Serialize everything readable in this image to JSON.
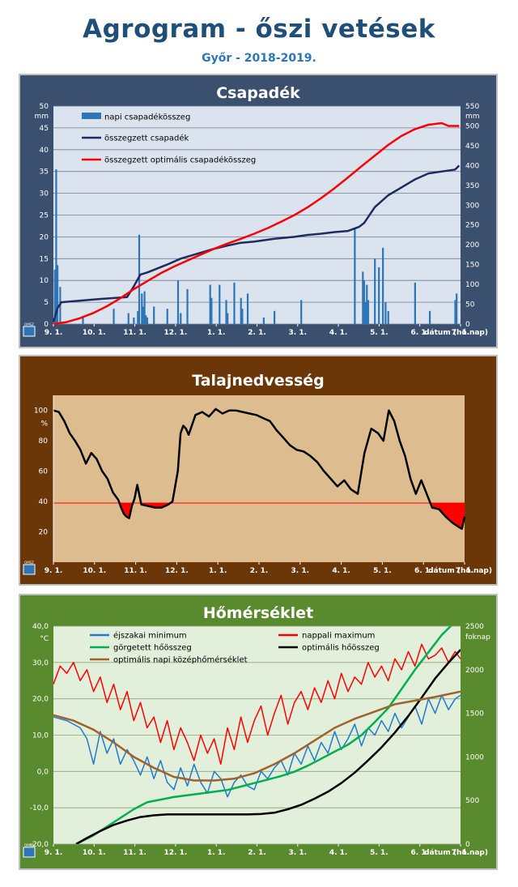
{
  "header": {
    "title": "Agrogram - őszi vetések",
    "subtitle": "Győr - 2018-2019."
  },
  "logo_text": "OMSZ",
  "colors": {
    "bar": "#2e75b6",
    "navy": "#1f2a5e",
    "red": "#ff0000",
    "green": "#00b050",
    "brown": "#a0622d",
    "blue": "#1f7bd0",
    "black": "#000000"
  },
  "x_axis": {
    "ticks": [
      "9. 1.",
      "10. 1.",
      "11. 1.",
      "12. 1.",
      "1. 1.",
      "2. 1.",
      "3. 1.",
      "4. 1.",
      "5. 1.",
      "6. 1.",
      "7. 1."
    ],
    "label": "dátum (hó.nap)"
  },
  "chart_data": [
    {
      "type": "bar",
      "title": "Csapadék",
      "ylabel": "mm",
      "y2label": "mm",
      "ylim": [
        0,
        50
      ],
      "y2lim": [
        0,
        550
      ],
      "yticks": [
        0,
        5,
        10,
        15,
        20,
        25,
        30,
        35,
        40,
        45,
        50
      ],
      "y2ticks": [
        0,
        50,
        100,
        150,
        200,
        250,
        300,
        350,
        400,
        450,
        500,
        550
      ],
      "grid": true,
      "legend": [
        "napi csapadékösszeg",
        "összegzett csapadék",
        "összegzett optimális csapadékösszeg"
      ],
      "series": [
        {
          "name": "napi csapadékösszeg",
          "axis": "left",
          "kind": "bar",
          "x": [
            1,
            2,
            3,
            5,
            22,
            45,
            56,
            60,
            63,
            64,
            66,
            67,
            68,
            69,
            70,
            75,
            85,
            93,
            95,
            100,
            117,
            118,
            124,
            129,
            130,
            135,
            140,
            141,
            145,
            157,
            165,
            185,
            225,
            231,
            232,
            233,
            234,
            235,
            240,
            243,
            246,
            248,
            250,
            270,
            281,
            300,
            301
          ],
          "values": [
            12.5,
            35.5,
            13.5,
            8.5,
            1.5,
            3.5,
            2.5,
            1.5,
            3,
            20.5,
            7,
            4,
            7.5,
            2,
            1.5,
            4,
            3.5,
            10,
            2.5,
            8,
            9,
            6,
            9,
            5.5,
            2.5,
            9.5,
            6,
            3.5,
            7,
            1.5,
            3,
            5.5,
            22,
            12,
            10,
            5,
            9,
            5.5,
            15,
            13,
            17.5,
            5,
            3,
            9.5,
            3,
            5.5,
            7
          ]
        },
        {
          "name": "összegzett csapadék",
          "axis": "right",
          "kind": "line",
          "x": [
            0,
            3,
            6,
            30,
            55,
            60,
            65,
            70,
            85,
            95,
            105,
            120,
            130,
            140,
            150,
            165,
            180,
            190,
            200,
            210,
            220,
            228,
            232,
            240,
            250,
            260,
            270,
            280,
            290,
            300,
            303
          ],
          "values": [
            5,
            40,
            55,
            62,
            68,
            95,
            125,
            130,
            150,
            165,
            175,
            190,
            198,
            205,
            208,
            215,
            220,
            225,
            228,
            232,
            235,
            245,
            255,
            295,
            325,
            345,
            365,
            380,
            385,
            390,
            400
          ]
        },
        {
          "name": "összegzett optimális csapadékösszeg",
          "axis": "right",
          "kind": "line",
          "x": [
            0,
            10,
            20,
            30,
            40,
            50,
            60,
            70,
            80,
            90,
            100,
            110,
            120,
            130,
            140,
            150,
            160,
            170,
            180,
            190,
            200,
            210,
            220,
            230,
            240,
            250,
            260,
            270,
            280,
            290,
            295,
            303
          ],
          "values": [
            0,
            5,
            15,
            28,
            45,
            65,
            88,
            108,
            128,
            145,
            160,
            175,
            190,
            203,
            215,
            228,
            242,
            258,
            275,
            295,
            318,
            343,
            370,
            398,
            425,
            452,
            475,
            492,
            503,
            507,
            500,
            500
          ]
        }
      ]
    },
    {
      "type": "area",
      "title": "Talajnedvesség",
      "ylabel": "%",
      "ylim": [
        0,
        110
      ],
      "yticks": [
        20,
        40,
        60,
        80,
        100
      ],
      "threshold": 39,
      "grid": false,
      "series": [
        {
          "name": "",
          "kind": "line",
          "x": [
            0,
            4,
            8,
            12,
            16,
            20,
            24,
            28,
            32,
            36,
            40,
            44,
            48,
            50,
            52,
            54,
            56,
            58,
            60,
            62,
            65,
            70,
            75,
            80,
            85,
            88,
            92,
            94,
            96,
            98,
            100,
            105,
            110,
            115,
            120,
            125,
            130,
            135,
            140,
            145,
            150,
            155,
            160,
            165,
            170,
            175,
            180,
            185,
            190,
            195,
            200,
            205,
            210,
            215,
            220,
            225,
            230,
            235,
            240,
            244,
            248,
            252,
            256,
            260,
            264,
            268,
            272,
            276,
            280,
            285,
            290,
            295,
            300,
            302,
            304
          ],
          "values": [
            100,
            99,
            93,
            85,
            80,
            74,
            65,
            72,
            68,
            60,
            55,
            46,
            41,
            36,
            32,
            30,
            29,
            37,
            42,
            51,
            38,
            37,
            36,
            36,
            38,
            40,
            60,
            85,
            90,
            88,
            84,
            97,
            99,
            96,
            101,
            98,
            100,
            100,
            99,
            98,
            97,
            95,
            93,
            87,
            82,
            77,
            74,
            73,
            70,
            66,
            60,
            55,
            50,
            54,
            48,
            45,
            72,
            88,
            85,
            80,
            100,
            93,
            80,
            70,
            55,
            45,
            54,
            45,
            36,
            35,
            30,
            26,
            23,
            22,
            30
          ]
        }
      ]
    },
    {
      "type": "line",
      "title": "Hőmérséklet",
      "ylabel": "°C",
      "y2label": "foknap",
      "ylim": [
        -20,
        40
      ],
      "y2lim": [
        0,
        2500
      ],
      "yticks": [
        "-20,0",
        "-10,0",
        "0,0",
        "10,0",
        "20,0",
        "30,0",
        "40,0"
      ],
      "y2ticks": [
        0,
        500,
        1000,
        1500,
        2000,
        2500
      ],
      "grid": true,
      "legend": [
        "éjszakai minimum",
        "nappali maximum",
        "görgetett hőösszeg",
        "optimális hőösszeg",
        "optimális napi középhőmérséklet"
      ],
      "series": [
        {
          "name": "éjszakai minimum",
          "axis": "left",
          "kind": "line",
          "x": [
            0,
            10,
            20,
            25,
            30,
            35,
            40,
            45,
            50,
            55,
            60,
            65,
            70,
            75,
            80,
            85,
            90,
            95,
            100,
            105,
            110,
            115,
            120,
            125,
            130,
            135,
            140,
            145,
            150,
            155,
            160,
            165,
            170,
            175,
            180,
            185,
            190,
            195,
            200,
            205,
            210,
            215,
            220,
            225,
            230,
            235,
            240,
            245,
            250,
            255,
            260,
            265,
            270,
            275,
            280,
            285,
            290,
            295,
            300,
            304
          ],
          "values": [
            15,
            14,
            12,
            9,
            2,
            11,
            5,
            9,
            2,
            6,
            3,
            -1,
            4,
            -2,
            3,
            -3,
            -5,
            1,
            -4,
            2,
            -3,
            -6,
            0,
            -2,
            -7,
            -3,
            -1,
            -4,
            -5,
            0,
            -2,
            1,
            3,
            -1,
            5,
            2,
            7,
            3,
            8,
            5,
            11,
            6,
            9,
            13,
            7,
            12,
            10,
            14,
            11,
            16,
            12,
            15,
            18,
            13,
            20,
            16,
            21,
            17,
            20,
            21
          ]
        },
        {
          "name": "nappali maximum",
          "axis": "left",
          "kind": "line",
          "x": [
            0,
            5,
            10,
            15,
            20,
            25,
            30,
            35,
            40,
            45,
            50,
            55,
            60,
            65,
            70,
            75,
            80,
            85,
            90,
            95,
            100,
            105,
            110,
            115,
            120,
            125,
            130,
            135,
            140,
            145,
            150,
            155,
            160,
            165,
            170,
            175,
            180,
            185,
            190,
            195,
            200,
            205,
            210,
            215,
            220,
            225,
            230,
            235,
            240,
            245,
            250,
            255,
            260,
            265,
            270,
            275,
            280,
            285,
            290,
            295,
            300,
            304
          ],
          "values": [
            24,
            29,
            27,
            30,
            25,
            28,
            22,
            26,
            19,
            24,
            17,
            22,
            14,
            19,
            12,
            15,
            8,
            14,
            6,
            12,
            8,
            3,
            10,
            5,
            9,
            2,
            12,
            6,
            15,
            8,
            14,
            18,
            10,
            16,
            21,
            13,
            19,
            22,
            17,
            23,
            19,
            25,
            20,
            27,
            22,
            26,
            24,
            30,
            26,
            29,
            25,
            31,
            28,
            33,
            29,
            35,
            31,
            32,
            34,
            30,
            33,
            31
          ]
        },
        {
          "name": "görgetett hőösszeg",
          "axis": "right",
          "kind": "line",
          "x": [
            17,
            30,
            45,
            60,
            70,
            80,
            90,
            100,
            110,
            120,
            130,
            140,
            150,
            160,
            170,
            180,
            190,
            200,
            210,
            220,
            230,
            240,
            250,
            260,
            270,
            280,
            290,
            298
          ],
          "values": [
            0,
            100,
            250,
            400,
            480,
            510,
            540,
            560,
            580,
            600,
            620,
            660,
            700,
            740,
            780,
            830,
            900,
            980,
            1060,
            1140,
            1250,
            1400,
            1560,
            1780,
            2000,
            2200,
            2400,
            2520
          ]
        },
        {
          "name": "optimális hőösszeg",
          "axis": "right",
          "kind": "line",
          "x": [
            17,
            25,
            35,
            45,
            55,
            65,
            75,
            85,
            95,
            105,
            115,
            125,
            135,
            145,
            155,
            165,
            175,
            185,
            195,
            205,
            215,
            225,
            235,
            245,
            255,
            265,
            275,
            285,
            295,
            304
          ],
          "values": [
            0,
            70,
            150,
            220,
            270,
            310,
            330,
            340,
            340,
            340,
            340,
            340,
            340,
            340,
            345,
            360,
            400,
            450,
            520,
            600,
            700,
            820,
            960,
            1110,
            1280,
            1470,
            1680,
            1900,
            2080,
            2230
          ]
        },
        {
          "name": "optimális napi középhőmérséklet",
          "axis": "left",
          "kind": "line",
          "x": [
            0,
            15,
            30,
            45,
            60,
            75,
            90,
            105,
            120,
            135,
            150,
            165,
            180,
            195,
            210,
            225,
            240,
            255,
            270,
            285,
            304
          ],
          "values": [
            15.5,
            14,
            11.5,
            8,
            4,
            1,
            -1.5,
            -2.5,
            -2.5,
            -2,
            -0.5,
            2,
            5,
            8.5,
            12,
            14.5,
            16.5,
            18.5,
            19.5,
            20.5,
            22
          ]
        }
      ]
    }
  ]
}
